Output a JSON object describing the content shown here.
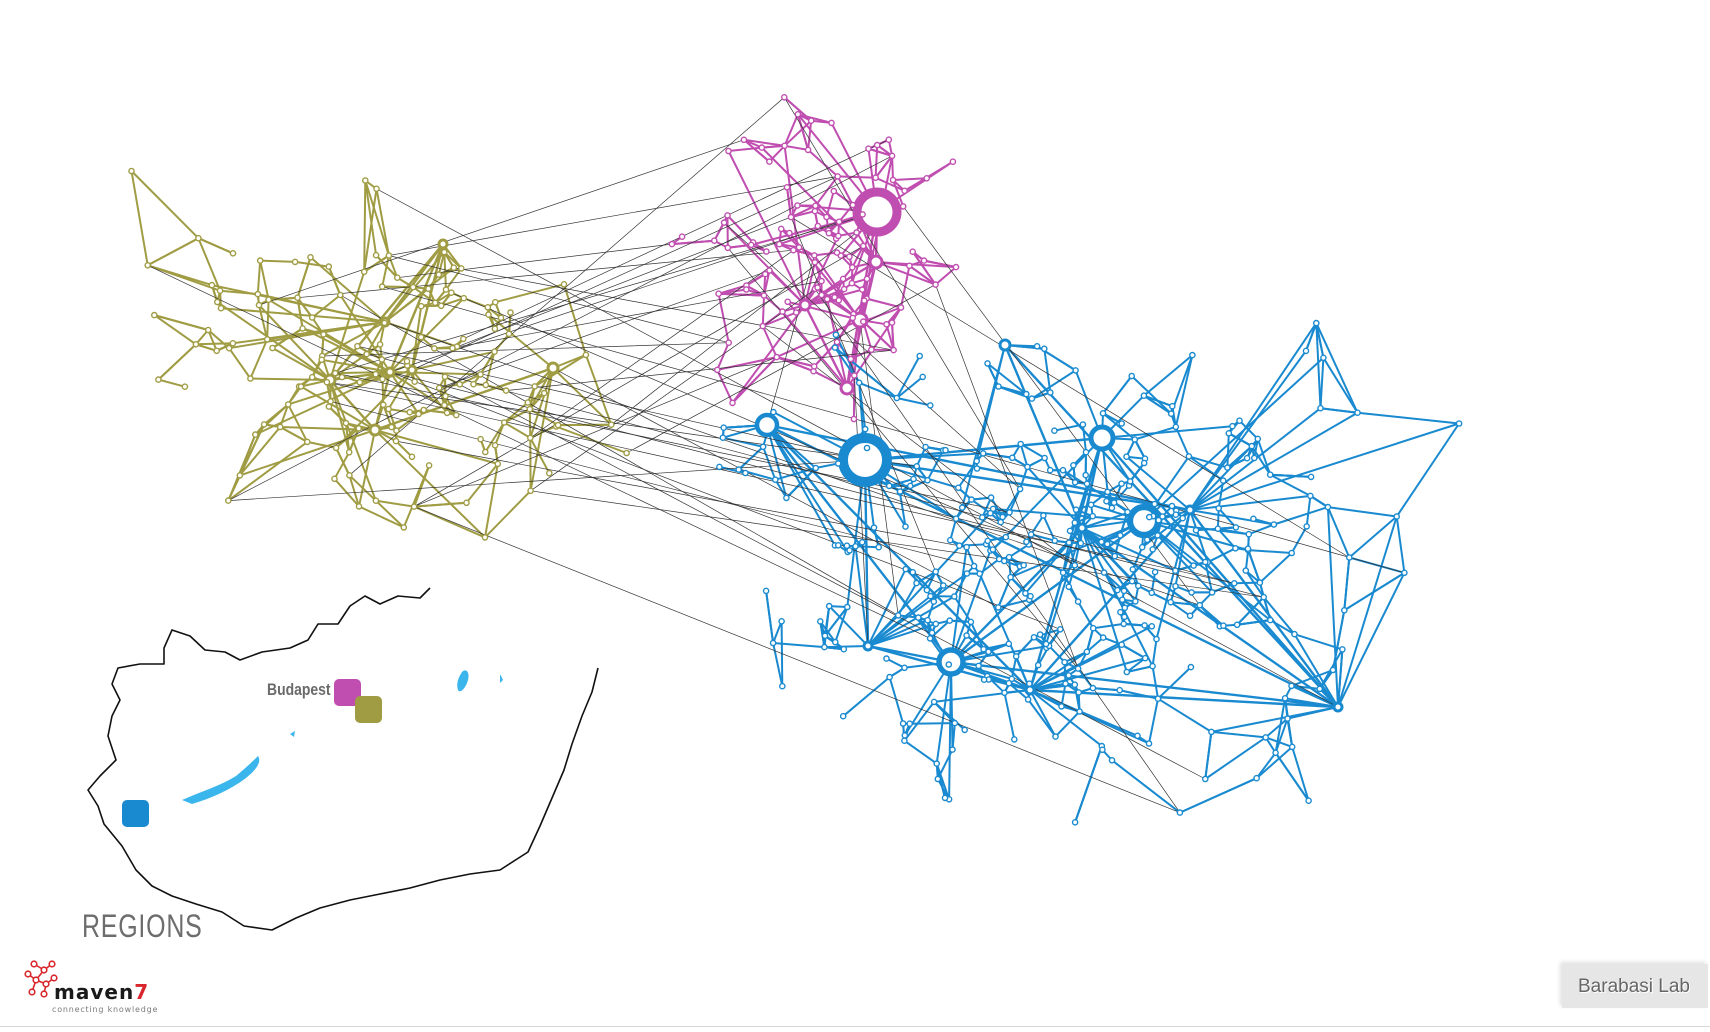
{
  "diagram": {
    "type": "network",
    "colors": {
      "pink": "#c04eb0",
      "olive": "#a09c44",
      "blue": "#1a8ad0",
      "lake": "#3bb6ec",
      "link": "#333333",
      "border": "#111111"
    }
  },
  "map": {
    "title": "REGIONS",
    "city_label": "Budapest",
    "markers": [
      {
        "region": "pink",
        "color": "#c04eb0"
      },
      {
        "region": "olive",
        "color": "#a09c44"
      },
      {
        "region": "blue",
        "color": "#1a8ad0"
      }
    ]
  },
  "logo": {
    "icon": "molecule-logo-icon",
    "name": "maven",
    "digit": "7",
    "tagline": "connecting knowledge"
  },
  "badge": {
    "label": "Barabasi Lab"
  }
}
